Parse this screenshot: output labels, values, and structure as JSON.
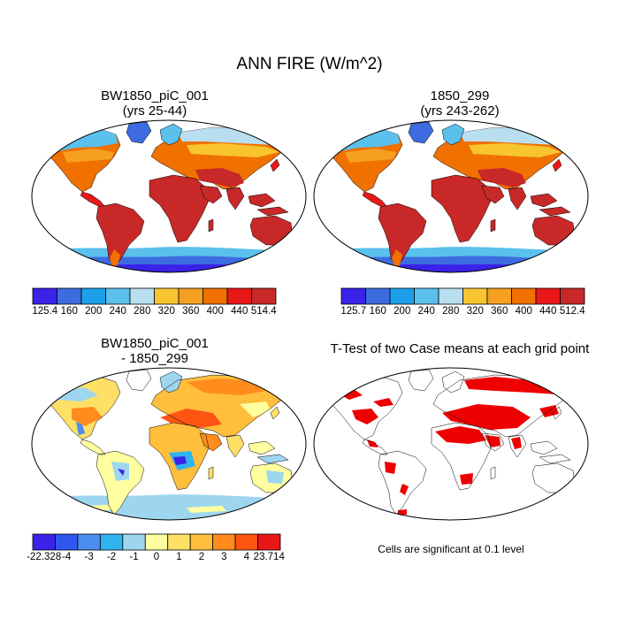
{
  "title": "ANN FIRE (W/m^2)",
  "panels": [
    {
      "title1": "BW1850_piC_001",
      "title2": "(yrs 25-44)",
      "colorbar_labels": [
        "125.4",
        "160",
        "200",
        "240",
        "280",
        "320",
        "360",
        "400",
        "440",
        "514.4"
      ]
    },
    {
      "title1": "1850_299",
      "title2": "(yrs 243-262)",
      "colorbar_labels": [
        "125.7",
        "160",
        "200",
        "240",
        "280",
        "320",
        "360",
        "400",
        "440",
        "512.4"
      ]
    },
    {
      "title1": "BW1850_piC_001",
      "title2": "- 1850_299",
      "colorbar_labels": [
        "-22.328",
        "-4",
        "-3",
        "-2",
        "-1",
        "0",
        "1",
        "2",
        "3",
        "4",
        "23.714"
      ]
    },
    {
      "title1": "T-Test of two Case means at each grid point"
    }
  ],
  "significance_note": "Cells are significant at 0.1 level",
  "colors": {
    "abs_scale": [
      "#3a22e8",
      "#3d6ce0",
      "#1da0ea",
      "#5ac0ec",
      "#b9def0",
      "#f8c430",
      "#f5a020",
      "#f07000",
      "#e81818",
      "#c82828"
    ],
    "diff_scale": [
      "#3a22e8",
      "#2f57f0",
      "#4a8ef0",
      "#30b4f0",
      "#9ed6f0",
      "#ffff9f",
      "#ffe067",
      "#ffbe3c",
      "#ff8c1d",
      "#ff5512",
      "#e81818",
      "#c82828"
    ],
    "significant": "#ee0000"
  }
}
